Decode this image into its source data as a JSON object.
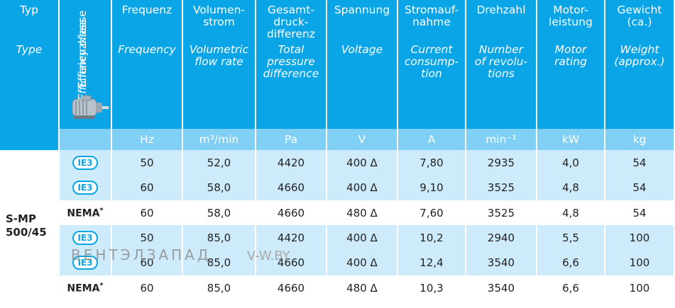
{
  "headers": {
    "typ": {
      "de": "Typ",
      "en": "Type"
    },
    "efficiency": {
      "de": "Effizienzklasse",
      "en": "Efficiency class"
    },
    "columns": [
      {
        "de": "Frequenz",
        "en": "Frequency",
        "unit": "Hz"
      },
      {
        "de": "Volumen-\nstrom",
        "en": "Volumetric\nflow rate",
        "unit": "m³/min"
      },
      {
        "de": "Gesamt-\ndruck-\ndifferenz",
        "en": "Total\npressure\ndifference",
        "unit": "Pa"
      },
      {
        "de": "Spannung",
        "en": "Voltage",
        "unit": "V"
      },
      {
        "de": "Stromauf-\nnahme",
        "en": "Current\nconsump-\ntion",
        "unit": "A"
      },
      {
        "de": "Drehzahl",
        "en": "Number\nof revolu-\ntions",
        "unit": "min⁻¹"
      },
      {
        "de": "Motor-\nleistung",
        "en": "Motor\nrating",
        "unit": "kW"
      },
      {
        "de": "Gewicht\n(ca.)",
        "en": "Weight\n(approx.)",
        "unit": "kg"
      }
    ]
  },
  "model": {
    "line1": "S-MP",
    "line2": "500/45"
  },
  "rows": [
    {
      "class": "IE3",
      "values": [
        "50",
        "52,0",
        "4420",
        "400 Δ",
        "7,80",
        "2935",
        "4,0",
        "54"
      ]
    },
    {
      "class": "IE3",
      "values": [
        "60",
        "58,0",
        "4660",
        "400 Δ",
        "9,10",
        "3525",
        "4,8",
        "54"
      ]
    },
    {
      "class": "NEMA*",
      "values": [
        "60",
        "58,0",
        "4660",
        "480 Δ",
        "7,60",
        "3525",
        "4,8",
        "54"
      ]
    },
    {
      "class": "IE3",
      "values": [
        "50",
        "85,0",
        "4420",
        "400 Δ",
        "10,2",
        "2940",
        "5,5",
        "100"
      ]
    },
    {
      "class": "IE3",
      "values": [
        "60",
        "85,0",
        "4660",
        "400 Δ",
        "12,4",
        "3540",
        "6,6",
        "100"
      ]
    },
    {
      "class": "NEMA*",
      "values": [
        "60",
        "85,0",
        "4660",
        "480 Δ",
        "10,3",
        "3540",
        "6,6",
        "100"
      ]
    }
  ],
  "watermark": {
    "brand": "ВЕНТЭЛЗАПАД",
    "site": "V-W.BY"
  },
  "colors": {
    "header": "#0aa5e6",
    "unit_row": "#7fd0f4",
    "light_row": "#cdebfa"
  }
}
